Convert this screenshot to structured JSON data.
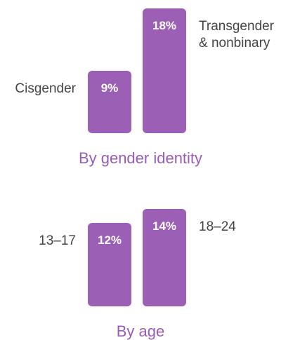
{
  "chart_data": [
    {
      "type": "bar",
      "title": "By gender identity",
      "categories": [
        "Cisgender",
        "Transgender\n& nonbinary"
      ],
      "values": [
        9,
        18
      ],
      "value_labels": [
        "9%",
        "18%"
      ],
      "color": "#9b5fb5"
    },
    {
      "type": "bar",
      "title": "By age",
      "categories": [
        "13–17",
        "18–24"
      ],
      "values": [
        12,
        14
      ],
      "value_labels": [
        "12%",
        "14%"
      ],
      "color": "#9b5fb5"
    }
  ]
}
